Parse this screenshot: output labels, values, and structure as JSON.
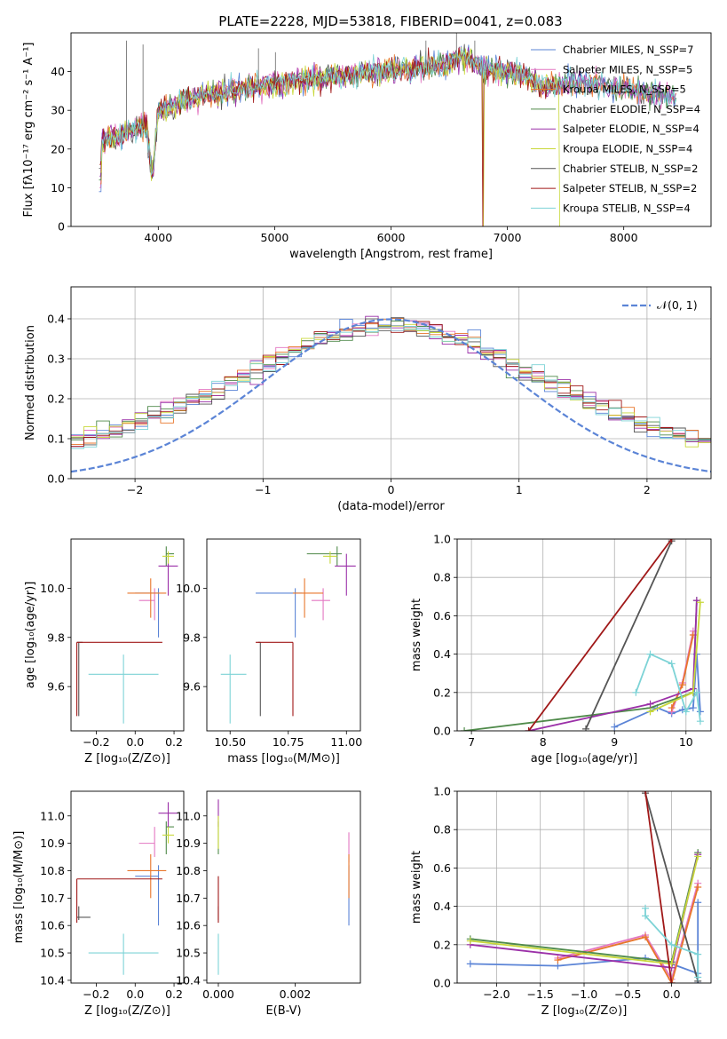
{
  "figure_title": "PLATE=2228, MJD=53818, FIBERID=0041, z=0.083",
  "colors": [
    "#5b84d6",
    "#e377c2",
    "#e8762b",
    "#4f8a4a",
    "#9b30a8",
    "#c8d83a",
    "#555555",
    "#a01818",
    "#7dd3d6"
  ],
  "chart_data": [
    {
      "id": "spectrum",
      "type": "line",
      "title": "PLATE=2228, MJD=53818, FIBERID=0041, z=0.083",
      "xlabel": "wavelength [Angstrom, rest frame]",
      "ylabel": "Flux [fλ10⁻¹⁷ erg cm⁻² s⁻¹ A⁻¹]",
      "xlim": [
        3250,
        8750
      ],
      "ylim": [
        0,
        50
      ],
      "xticks": [
        4000,
        5000,
        6000,
        7000,
        8000
      ],
      "yticks": [
        0,
        10,
        20,
        30,
        40
      ],
      "legend_position": "top-right",
      "series": [
        {
          "name": "Chabrier MILES, N_SSP=7"
        },
        {
          "name": "Salpeter MILES, N_SSP=5"
        },
        {
          "name": "Kroupa MILES, N_SSP=5"
        },
        {
          "name": "Chabrier ELODIE, N_SSP=4"
        },
        {
          "name": "Salpeter ELODIE, N_SSP=4"
        },
        {
          "name": "Kroupa ELODIE, N_SSP=4"
        },
        {
          "name": "Chabrier STELIB, N_SSP=2"
        },
        {
          "name": "Salpeter STELIB, N_SSP=2"
        },
        {
          "name": "Kroupa STELIB, N_SSP=4"
        }
      ],
      "continuum": {
        "x": [
          3500,
          3600,
          3700,
          3800,
          3900,
          3950,
          4000,
          4100,
          4200,
          4300,
          4400,
          4500,
          4600,
          4700,
          4800,
          4900,
          5000,
          5100,
          5200,
          5300,
          5400,
          5500,
          5600,
          5700,
          5800,
          5900,
          6000,
          6100,
          6200,
          6300,
          6400,
          6500,
          6600,
          6700,
          6800,
          6900,
          7000,
          7100,
          7200,
          7300,
          7400,
          7500,
          7600,
          7700,
          7800,
          7900,
          8000,
          8100,
          8200,
          8300,
          8400,
          8500
        ],
        "y": [
          22,
          23,
          24,
          25,
          26,
          13,
          30,
          31,
          32,
          33,
          34,
          34.5,
          35,
          35.5,
          36,
          36.5,
          37,
          37.3,
          37.6,
          38,
          38.3,
          38.6,
          39,
          39.3,
          39.6,
          40,
          40.3,
          40.6,
          41,
          41.3,
          41.6,
          42,
          44,
          43,
          41,
          40.5,
          40,
          39.5,
          38,
          36,
          36,
          37,
          37.5,
          37,
          36.5,
          36,
          35.5,
          35,
          34.5,
          34,
          33.5,
          33
        ]
      },
      "emission_lines": [
        {
          "wavelength": 3727,
          "peak": 48
        },
        {
          "wavelength": 3869,
          "peak": 47
        },
        {
          "wavelength": 4861,
          "peak": 46
        },
        {
          "wavelength": 5007,
          "peak": 45
        },
        {
          "wavelength": 6300,
          "peak": 48
        },
        {
          "wavelength": 6563,
          "peak": 50
        },
        {
          "wavelength": 6720,
          "peak": 48
        }
      ]
    },
    {
      "id": "residual-histogram",
      "type": "histogram",
      "xlabel": "(data-model)/error",
      "ylabel": "Normed distribution",
      "xlim": [
        -2.5,
        2.5
      ],
      "ylim": [
        0,
        0.48
      ],
      "xticks": [
        -2,
        -1,
        0,
        1,
        2
      ],
      "xticklabels": [
        "−2",
        "−1",
        "0",
        "1",
        "2"
      ],
      "yticks": [
        0.0,
        0.1,
        0.2,
        0.3,
        0.4
      ],
      "yticklabels": [
        "0.0",
        "0.1",
        "0.2",
        "0.3",
        "0.4"
      ],
      "grid": true,
      "legend_position": "top-right",
      "reference_curve": {
        "label": "𝒩(0, 1)",
        "mean": 0,
        "sigma": 1
      },
      "bin_width": 0.1,
      "bins_start": -2.5,
      "n_bins": 50,
      "n_series": 9
    },
    {
      "id": "z-vs-age",
      "type": "errorbar",
      "xlabel": "Z [log₁₀(Z/Z⊙)]",
      "ylabel": "age  [log₁₀(age/yr)]",
      "xlim": [
        -0.33,
        0.25
      ],
      "ylim": [
        9.42,
        10.2
      ],
      "xticks": [
        -0.2,
        0.0,
        0.2
      ],
      "xticklabels": [
        "−0.2",
        "0.0",
        "0.2"
      ],
      "yticks": [
        9.6,
        9.8,
        10.0
      ],
      "yticklabels": [
        "9.6",
        "9.8",
        "10.0"
      ],
      "points": [
        {
          "x": 0.12,
          "xerr": [
            0.12,
            0.0
          ],
          "y": 9.98,
          "yerr": [
            0.18,
            0.02
          ]
        },
        {
          "x": 0.1,
          "xerr": [
            0.08,
            0.0
          ],
          "y": 9.95,
          "yerr": [
            0.08,
            0.05
          ]
        },
        {
          "x": 0.08,
          "xerr": [
            0.12,
            0.08
          ],
          "y": 9.98,
          "yerr": [
            0.1,
            0.06
          ]
        },
        {
          "x": 0.16,
          "xerr": [
            0.0,
            0.04
          ],
          "y": 10.14,
          "yerr": [
            0.05,
            0.03
          ]
        },
        {
          "x": 0.17,
          "xerr": [
            0.05,
            0.05
          ],
          "y": 10.09,
          "yerr": [
            0.12,
            0.05
          ]
        },
        {
          "x": 0.17,
          "xerr": [
            0.03,
            0.03
          ],
          "y": 10.13,
          "yerr": [
            0.03,
            0.02
          ]
        },
        {
          "x": -0.29,
          "xerr": [
            0.01,
            0.02
          ],
          "y": 9.78,
          "yerr": [
            0.3,
            0.0
          ]
        },
        {
          "x": -0.3,
          "xerr": [
            0.0,
            0.44
          ],
          "y": 9.78,
          "yerr": [
            0.3,
            0.0
          ]
        },
        {
          "x": -0.06,
          "xerr": [
            0.18,
            0.18
          ],
          "y": 9.65,
          "yerr": [
            0.2,
            0.08
          ]
        }
      ]
    },
    {
      "id": "mass-vs-age",
      "type": "errorbar",
      "xlabel": "mass [log₁₀(M/M⊙)]",
      "ylabel": "",
      "xlim": [
        10.4,
        11.06
      ],
      "ylim": [
        9.42,
        10.2
      ],
      "xticks": [
        10.5,
        10.75,
        11.0
      ],
      "xticklabels": [
        "10.50",
        "10.75",
        "11.00"
      ],
      "yticks": [
        9.6,
        9.8,
        10.0
      ],
      "yticklabels": [
        "9.6",
        "9.8",
        "10.0"
      ],
      "points": [
        {
          "x": 10.78,
          "xerr": [
            0.17,
            0.03
          ],
          "y": 9.98,
          "yerr": [
            0.18,
            0.02
          ]
        },
        {
          "x": 10.9,
          "xerr": [
            0.05,
            0.03
          ],
          "y": 9.95,
          "yerr": [
            0.08,
            0.05
          ]
        },
        {
          "x": 10.82,
          "xerr": [
            0.05,
            0.08
          ],
          "y": 9.98,
          "yerr": [
            0.1,
            0.06
          ]
        },
        {
          "x": 10.96,
          "xerr": [
            0.13,
            0.02
          ],
          "y": 10.14,
          "yerr": [
            0.05,
            0.03
          ]
        },
        {
          "x": 11.0,
          "xerr": [
            0.05,
            0.04
          ],
          "y": 10.09,
          "yerr": [
            0.12,
            0.05
          ]
        },
        {
          "x": 10.93,
          "xerr": [
            0.03,
            0.03
          ],
          "y": 10.13,
          "yerr": [
            0.03,
            0.02
          ]
        },
        {
          "x": 10.63,
          "xerr": [
            0.01,
            0.0
          ],
          "y": 9.78,
          "yerr": [
            0.3,
            0.0
          ]
        },
        {
          "x": 10.77,
          "xerr": [
            0.16,
            0.0
          ],
          "y": 9.78,
          "yerr": [
            0.3,
            0.0
          ]
        },
        {
          "x": 10.5,
          "xerr": [
            0.04,
            0.07
          ],
          "y": 9.65,
          "yerr": [
            0.2,
            0.08
          ]
        }
      ]
    },
    {
      "id": "age-mass-weight",
      "type": "line",
      "xlabel": "age  [log₁₀(age/yr)]",
      "ylabel": "mass weight",
      "xlim": [
        6.8,
        10.35
      ],
      "ylim": [
        0,
        1
      ],
      "xticks": [
        7,
        8,
        9,
        10
      ],
      "yticks": [
        0.0,
        0.2,
        0.4,
        0.6,
        0.8,
        1.0
      ],
      "yticklabels": [
        "0.0",
        "0.2",
        "0.4",
        "0.6",
        "0.8",
        "1.0"
      ],
      "grid": true,
      "series": [
        {
          "x": [
            9.0,
            9.6,
            9.8,
            9.95,
            10.1,
            10.15,
            10.2
          ],
          "y": [
            0.02,
            0.12,
            0.09,
            0.11,
            0.12,
            0.4,
            0.1
          ]
        },
        {
          "x": [
            9.8,
            9.95,
            10.1
          ],
          "y": [
            0.1,
            0.25,
            0.52
          ]
        },
        {
          "x": [
            9.8,
            9.95,
            10.1
          ],
          "y": [
            0.12,
            0.24,
            0.5
          ]
        },
        {
          "x": [
            6.9,
            9.5,
            10.1,
            10.15
          ],
          "y": [
            0.0,
            0.12,
            0.2,
            0.68
          ]
        },
        {
          "x": [
            7.8,
            9.5,
            10.1,
            10.15
          ],
          "y": [
            0.0,
            0.14,
            0.22,
            0.68
          ]
        },
        {
          "x": [
            9.5,
            10.1,
            10.2
          ],
          "y": [
            0.1,
            0.2,
            0.67
          ]
        },
        {
          "x": [
            8.6,
            9.8
          ],
          "y": [
            0.01,
            0.99
          ]
        },
        {
          "x": [
            7.8,
            9.8
          ],
          "y": [
            0.0,
            1.0
          ]
        },
        {
          "x": [
            9.3,
            9.5,
            9.8,
            10.0,
            10.15,
            10.2
          ],
          "y": [
            0.2,
            0.4,
            0.35,
            0.1,
            0.2,
            0.05
          ]
        }
      ]
    },
    {
      "id": "z-vs-mass",
      "type": "errorbar",
      "xlabel": "Z [log₁₀(Z/Z⊙)]",
      "ylabel": "mass [log₁₀(M/M⊙)]",
      "xlim": [
        -0.33,
        0.25
      ],
      "ylim": [
        10.39,
        11.09
      ],
      "xticks": [
        -0.2,
        0.0,
        0.2
      ],
      "xticklabels": [
        "−0.2",
        "0.0",
        "0.2"
      ],
      "yticks": [
        10.4,
        10.5,
        10.6,
        10.7,
        10.8,
        10.9,
        11.0
      ],
      "yticklabels": [
        "10.4",
        "10.5",
        "10.6",
        "10.7",
        "10.8",
        "10.9",
        "11.0"
      ],
      "points": [
        {
          "x": 0.12,
          "xerr": [
            0.12,
            0.0
          ],
          "y": 10.78,
          "yerr": [
            0.18,
            0.04
          ]
        },
        {
          "x": 0.1,
          "xerr": [
            0.08,
            0.0
          ],
          "y": 10.9,
          "yerr": [
            0.05,
            0.06
          ]
        },
        {
          "x": 0.08,
          "xerr": [
            0.12,
            0.08
          ],
          "y": 10.8,
          "yerr": [
            0.1,
            0.06
          ]
        },
        {
          "x": 0.16,
          "xerr": [
            0.0,
            0.04
          ],
          "y": 10.96,
          "yerr": [
            0.1,
            0.02
          ]
        },
        {
          "x": 0.17,
          "xerr": [
            0.05,
            0.05
          ],
          "y": 11.01,
          "yerr": [
            0.05,
            0.04
          ]
        },
        {
          "x": 0.17,
          "xerr": [
            0.03,
            0.03
          ],
          "y": 10.93,
          "yerr": [
            0.03,
            0.03
          ]
        },
        {
          "x": -0.29,
          "xerr": [
            0.01,
            0.06
          ],
          "y": 10.63,
          "yerr": [
            0.01,
            0.04
          ]
        },
        {
          "x": -0.3,
          "xerr": [
            0.0,
            0.44
          ],
          "y": 10.77,
          "yerr": [
            0.16,
            0.0
          ]
        },
        {
          "x": -0.06,
          "xerr": [
            0.18,
            0.18
          ],
          "y": 10.5,
          "yerr": [
            0.08,
            0.07
          ]
        }
      ]
    },
    {
      "id": "ebv-vs-mass",
      "type": "errorbar",
      "xlabel": "E(B-V)",
      "ylabel": "",
      "xlim": [
        -0.0003,
        0.0037
      ],
      "ylim": [
        10.39,
        11.09
      ],
      "xticks": [
        0.0,
        0.002
      ],
      "xticklabels": [
        "0.000",
        "0.002"
      ],
      "yticks": [
        10.4,
        10.5,
        10.6,
        10.7,
        10.8,
        10.9,
        11.0
      ],
      "yticklabels": [
        "10.4",
        "10.5",
        "10.6",
        "10.7",
        "10.8",
        "10.9",
        "11.0"
      ],
      "points": [
        {
          "x": 0.0034,
          "xerr": [
            0,
            0
          ],
          "y": 10.78,
          "yerr": [
            0.18,
            0.04
          ]
        },
        {
          "x": 0.0034,
          "xerr": [
            0,
            0
          ],
          "y": 10.88,
          "yerr": [
            0.05,
            0.06
          ]
        },
        {
          "x": 0.0034,
          "xerr": [
            0,
            0
          ],
          "y": 10.8,
          "yerr": [
            0.1,
            0.06
          ]
        },
        {
          "x": 0.0,
          "xerr": [
            0,
            0
          ],
          "y": 10.96,
          "yerr": [
            0.1,
            0.02
          ]
        },
        {
          "x": 0.0,
          "xerr": [
            0,
            0
          ],
          "y": 11.01,
          "yerr": [
            0.05,
            0.05
          ]
        },
        {
          "x": 0.0,
          "xerr": [
            0,
            0
          ],
          "y": 10.93,
          "yerr": [
            0.05,
            0.07
          ]
        },
        {
          "x": 0.0,
          "xerr": [
            0,
            0
          ],
          "y": 10.63,
          "yerr": [
            0.01,
            0.04
          ]
        },
        {
          "x": 0.0,
          "xerr": [
            0,
            0
          ],
          "y": 10.68,
          "yerr": [
            0.07,
            0.1
          ]
        },
        {
          "x": 0.0,
          "xerr": [
            0,
            0
          ],
          "y": 10.5,
          "yerr": [
            0.08,
            0.07
          ]
        }
      ]
    },
    {
      "id": "z-mass-weight",
      "type": "line",
      "xlabel": "Z [log₁₀(Z/Z⊙)]",
      "ylabel": "mass weight",
      "xlim": [
        -2.45,
        0.45
      ],
      "ylim": [
        0,
        1
      ],
      "xticks": [
        -2.0,
        -1.5,
        -1.0,
        -0.5,
        0.0
      ],
      "xticklabels": [
        "−2.0",
        "−1.5",
        "−1.0",
        "−0.5",
        "0.0"
      ],
      "yticks": [
        0.0,
        0.2,
        0.4,
        0.6,
        0.8,
        1.0
      ],
      "yticklabels": [
        "0.0",
        "0.2",
        "0.4",
        "0.6",
        "0.8",
        "1.0"
      ],
      "grid": true,
      "series": [
        {
          "x": [
            -2.3,
            -1.3,
            -0.3,
            0.0,
            0.3,
            0.3,
            0.3
          ],
          "y": [
            0.1,
            0.09,
            0.13,
            0.1,
            0.05,
            0.42,
            0.0
          ]
        },
        {
          "x": [
            -1.3,
            -0.3,
            0.0,
            0.3
          ],
          "y": [
            0.13,
            0.25,
            0.02,
            0.52
          ]
        },
        {
          "x": [
            -1.3,
            -0.3,
            0.0,
            0.3
          ],
          "y": [
            0.12,
            0.24,
            0.0,
            0.5
          ]
        },
        {
          "x": [
            -2.3,
            0.0,
            0.3
          ],
          "y": [
            0.23,
            0.11,
            0.68
          ]
        },
        {
          "x": [
            -2.3,
            0.0,
            0.3
          ],
          "y": [
            0.2,
            0.08,
            0.67
          ]
        },
        {
          "x": [
            -2.3,
            0.0,
            0.3
          ],
          "y": [
            0.22,
            0.1,
            0.66
          ]
        },
        {
          "x": [
            -0.3,
            0.3
          ],
          "y": [
            0.99,
            0.01
          ]
        },
        {
          "x": [
            -0.3,
            0.0
          ],
          "y": [
            1.0,
            0.0
          ]
        },
        {
          "x": [
            -0.3,
            -0.3,
            0.0,
            0.3,
            0.3
          ],
          "y": [
            0.39,
            0.35,
            0.2,
            0.15,
            0.03
          ]
        }
      ]
    }
  ]
}
